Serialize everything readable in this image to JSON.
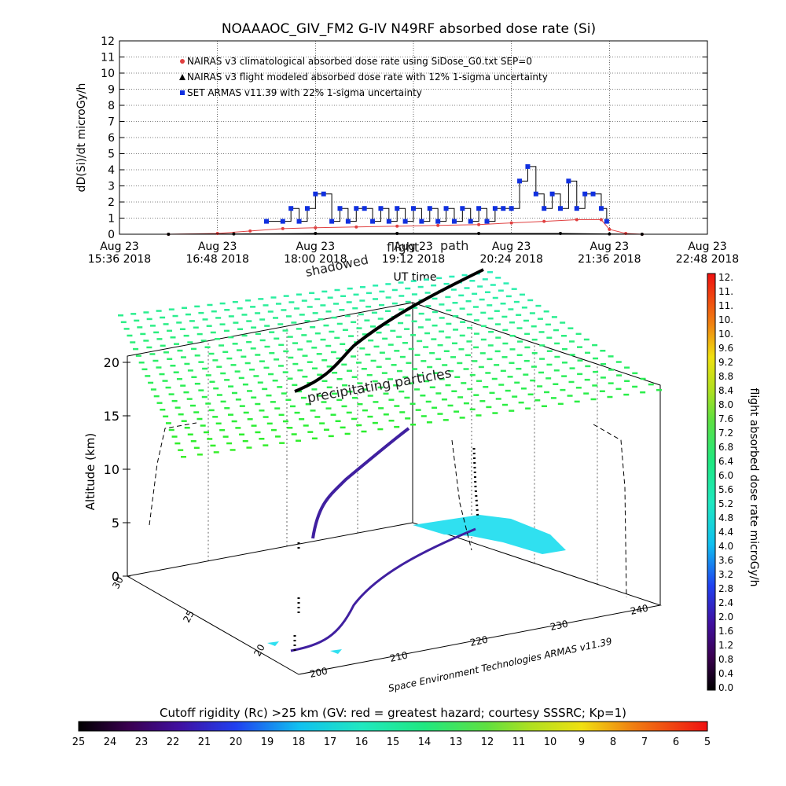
{
  "title": "NOAAAOC_GIV_FM2 G-IV    N49RF  absorbed dose rate (Si)",
  "top_chart": {
    "ylabel": "dD(Si)/dt microGy/h",
    "xlabel": "UT time",
    "yticks": [
      "0",
      "1",
      "2",
      "3",
      "4",
      "5",
      "6",
      "7",
      "8",
      "9",
      "10",
      "11",
      "12"
    ],
    "xticks": [
      {
        "d": "Aug 23",
        "t": "15:36 2018"
      },
      {
        "d": "Aug 23",
        "t": "16:48 2018"
      },
      {
        "d": "Aug 23",
        "t": "18:00 2018"
      },
      {
        "d": "Aug 23",
        "t": "19:12 2018"
      },
      {
        "d": "Aug 23",
        "t": "20:24 2018"
      },
      {
        "d": "Aug 23",
        "t": "21:36 2018"
      },
      {
        "d": "Aug 23",
        "t": "22:48 2018"
      }
    ],
    "legend": [
      "NAIRAS v3 climatological absorbed dose rate using SiDose_G0.txt SEP=0",
      "NAIRAS v3 flight modeled absorbed dose rate with 12% 1-sigma uncertainty",
      "SET ARMAS v11.39 with 22% 1-sigma uncertainty"
    ]
  },
  "scene": {
    "zlabel": "Altitude (km)",
    "zticks": [
      "0",
      "5",
      "10",
      "15",
      "20"
    ],
    "yticks": [
      "20",
      "25",
      "30"
    ],
    "xticks": [
      "200",
      "210",
      "220",
      "230",
      "240"
    ],
    "label_path": "path",
    "label_shadowed": "shadowed",
    "label_flight": "flight",
    "label_precip": "precipitating particles",
    "credit": "Space Environment Technologies ARMAS v11.39"
  },
  "colorbar_right": {
    "label": "flight absorbed dose rate microGy/h",
    "ticks": [
      "12.",
      "11.",
      "11.",
      "10.",
      "10.",
      "9.6",
      "9.2",
      "8.8",
      "8.4",
      "8.0",
      "7.6",
      "7.2",
      "6.8",
      "6.4",
      "6.0",
      "5.6",
      "5.2",
      "4.8",
      "4.4",
      "4.0",
      "3.6",
      "3.2",
      "2.8",
      "2.4",
      "2.0",
      "1.6",
      "1.2",
      "0.8",
      "0.4",
      "0.0"
    ]
  },
  "colorbar_bottom": {
    "label": "Cutoff rigidity (Rc) >25 km (GV: red = greatest hazard; courtesy SSSRC; Kp=1)",
    "ticks": [
      "25",
      "24",
      "23",
      "22",
      "21",
      "20",
      "19",
      "18",
      "17",
      "16",
      "15",
      "14",
      "13",
      "12",
      "11",
      "10",
      "9",
      "8",
      "7",
      "6",
      "5"
    ]
  },
  "chart_data": {
    "type": "line",
    "title": "NOAAAOC_GIV_FM2 G-IV    N49RF  absorbed dose rate (Si)",
    "xlabel": "UT time",
    "ylabel": "dD(Si)/dt microGy/h",
    "ylim": [
      0,
      12
    ],
    "x_range": [
      "Aug 23 15:36 2018",
      "Aug 23 22:48 2018"
    ],
    "grid": true,
    "legend_position": "top-left",
    "series": [
      {
        "name": "NAIRAS v3 climatological absorbed dose rate using SiDose_G0.txt SEP=0",
        "color": "#e04040",
        "x": [
          "16:12",
          "16:48",
          "17:12",
          "17:36",
          "18:00",
          "18:30",
          "19:00",
          "19:30",
          "20:00",
          "20:24",
          "20:48",
          "21:12",
          "21:30",
          "21:36",
          "21:48",
          "22:00"
        ],
        "y": [
          0.0,
          0.05,
          0.2,
          0.35,
          0.4,
          0.45,
          0.5,
          0.55,
          0.6,
          0.7,
          0.8,
          0.9,
          0.9,
          0.3,
          0.05,
          0.0
        ]
      },
      {
        "name": "NAIRAS v3 flight modeled absorbed dose rate with 12% 1-sigma uncertainty",
        "color": "#000000",
        "x": [
          "16:12",
          "17:00",
          "18:00",
          "19:00",
          "20:00",
          "21:00",
          "21:36",
          "22:00"
        ],
        "y": [
          0.0,
          0.02,
          0.05,
          0.05,
          0.05,
          0.05,
          0.02,
          0.0
        ]
      },
      {
        "name": "SET ARMAS v11.39 with 22% 1-sigma uncertainty",
        "color": "#1030e0",
        "x": [
          "17:24",
          "17:36",
          "17:42",
          "17:48",
          "17:54",
          "18:00",
          "18:06",
          "18:12",
          "18:18",
          "18:24",
          "18:30",
          "18:36",
          "18:42",
          "18:48",
          "18:54",
          "19:00",
          "19:06",
          "19:12",
          "19:18",
          "19:24",
          "19:30",
          "19:36",
          "19:42",
          "19:48",
          "19:54",
          "20:00",
          "20:06",
          "20:12",
          "20:18",
          "20:24",
          "20:30",
          "20:36",
          "20:42",
          "20:48",
          "20:54",
          "21:00",
          "21:06",
          "21:12",
          "21:18",
          "21:24",
          "21:30",
          "21:34"
        ],
        "y": [
          0.8,
          0.8,
          1.6,
          0.8,
          1.6,
          2.5,
          2.5,
          0.8,
          1.6,
          0.8,
          1.6,
          1.6,
          0.8,
          1.6,
          0.8,
          1.6,
          0.8,
          1.6,
          0.8,
          1.6,
          0.8,
          1.6,
          0.8,
          1.6,
          0.8,
          1.6,
          0.8,
          1.6,
          1.6,
          1.6,
          3.3,
          4.2,
          2.5,
          1.6,
          2.5,
          1.6,
          3.3,
          1.6,
          2.5,
          2.5,
          1.6,
          0.8
        ]
      }
    ]
  }
}
